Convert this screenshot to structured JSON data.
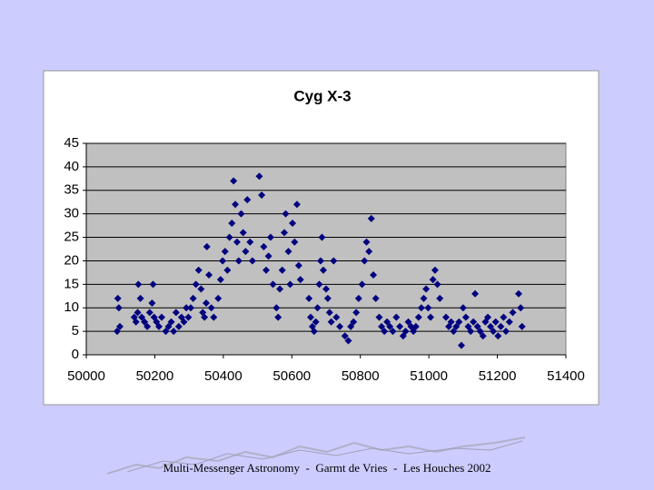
{
  "chart_data": {
    "type": "scatter",
    "title": "Cyg X-3",
    "color": "#00007f",
    "marker": "diamond",
    "grid": true,
    "xlim": [
      50000,
      51400
    ],
    "xticks": [
      50000,
      50200,
      50400,
      50600,
      50800,
      51000,
      51200,
      51400
    ],
    "ylim": [
      0,
      45
    ],
    "yticks": [
      0,
      5,
      10,
      15,
      20,
      25,
      30,
      35,
      40,
      45
    ],
    "x": [
      50090,
      50092,
      50095,
      50098,
      50140,
      50145,
      50150,
      50152,
      50158,
      50162,
      50170,
      50178,
      50185,
      50192,
      50195,
      50198,
      50205,
      50212,
      50220,
      50232,
      50240,
      50248,
      50255,
      50262,
      50270,
      50278,
      50285,
      50292,
      50298,
      50305,
      50312,
      50320,
      50328,
      50335,
      50340,
      50345,
      50350,
      50352,
      50358,
      50365,
      50372,
      50385,
      50392,
      50398,
      50405,
      50412,
      50418,
      50425,
      50430,
      50435,
      50440,
      50445,
      50452,
      50458,
      50465,
      50470,
      50478,
      50485,
      50505,
      50512,
      50518,
      50525,
      50532,
      50538,
      50545,
      50555,
      50560,
      50565,
      50572,
      50578,
      50582,
      50590,
      50595,
      50602,
      50608,
      50615,
      50620,
      50625,
      50650,
      50655,
      50660,
      50665,
      50670,
      50675,
      50680,
      50684,
      50688,
      50692,
      50700,
      50705,
      50710,
      50715,
      50722,
      50730,
      50740,
      50755,
      50765,
      50772,
      50780,
      50788,
      50795,
      50805,
      50812,
      50818,
      50825,
      50832,
      50838,
      50845,
      50855,
      50862,
      50870,
      50878,
      50886,
      50895,
      50905,
      50915,
      50925,
      50932,
      50940,
      50948,
      50955,
      50962,
      50970,
      50978,
      50985,
      50992,
      50998,
      51005,
      51012,
      51018,
      51025,
      51032,
      51050,
      51058,
      51065,
      51072,
      51080,
      51088,
      51095,
      51100,
      51108,
      51115,
      51122,
      51130,
      51135,
      51142,
      51150,
      51158,
      51165,
      51172,
      51180,
      51188,
      51195,
      51202,
      51210,
      51218,
      51225,
      51235,
      51245,
      51262,
      51268,
      51272
    ],
    "values": [
      5,
      12,
      10,
      6,
      8,
      7,
      9,
      15,
      12,
      8,
      7,
      6,
      9,
      11,
      15,
      8,
      7,
      6,
      8,
      5,
      6,
      7,
      5,
      9,
      6,
      8,
      7,
      10,
      8,
      10,
      12,
      15,
      18,
      14,
      9,
      8,
      11,
      23,
      17,
      10,
      8,
      12,
      16,
      20,
      22,
      18,
      25,
      28,
      37,
      32,
      24,
      20,
      30,
      26,
      22,
      33,
      24,
      20,
      38,
      34,
      23,
      18,
      21,
      25,
      15,
      10,
      8,
      14,
      18,
      26,
      30,
      22,
      15,
      28,
      24,
      32,
      19,
      16,
      12,
      8,
      6,
      5,
      7,
      10,
      15,
      20,
      25,
      18,
      14,
      12,
      9,
      7,
      20,
      8,
      6,
      4,
      3,
      6,
      7,
      9,
      12,
      15,
      20,
      24,
      22,
      29,
      17,
      12,
      8,
      6,
      5,
      7,
      6,
      5,
      8,
      6,
      4,
      5,
      7,
      6,
      5,
      6,
      8,
      10,
      12,
      14,
      10,
      8,
      16,
      18,
      15,
      12,
      8,
      6,
      7,
      5,
      6,
      7,
      2,
      10,
      8,
      6,
      5,
      7,
      13,
      6,
      5,
      4,
      7,
      8,
      6,
      5,
      7,
      4,
      6,
      8,
      5,
      7,
      9,
      13,
      10,
      6
    ]
  },
  "footer": "Multi-Messenger Astronomy  -  Garmt de Vries  -  Les Houches 2002"
}
